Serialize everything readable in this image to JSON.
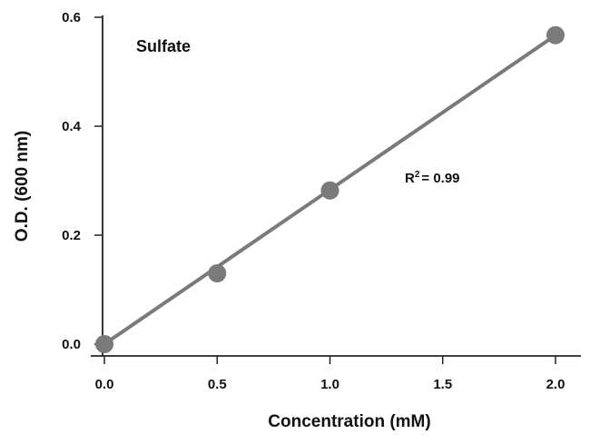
{
  "chart_data": {
    "type": "scatter",
    "title": "",
    "xlabel": "Concentration (mM)",
    "ylabel": "O.D. (600 nm)",
    "xlim": [
      0,
      2
    ],
    "ylim": [
      0,
      0.6
    ],
    "x_ticks": [
      "0.0",
      "0.5",
      "1.0",
      "1.5",
      "2.0"
    ],
    "y_ticks": [
      "0.0",
      "0.2",
      "0.4",
      "0.6"
    ],
    "grid": false,
    "annotations": {
      "label": "Sulfate",
      "r2_prefix": "R",
      "r2_sup": "2",
      "r2_value": "= 0.99"
    },
    "series": [
      {
        "x": [
          0,
          0.5,
          1.0,
          2.0
        ],
        "y": [
          0.0,
          0.13,
          0.282,
          0.567
        ],
        "trendline": {
          "x": [
            0,
            2.0
          ],
          "y": [
            0.0,
            0.567
          ]
        },
        "color": "#7a7a7a"
      }
    ]
  }
}
